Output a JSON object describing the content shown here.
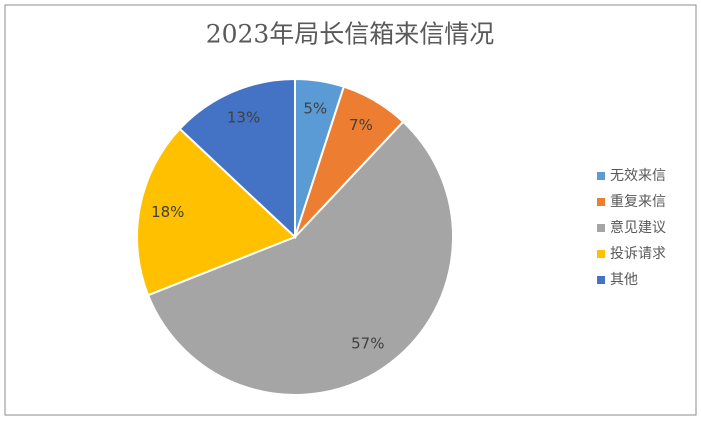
{
  "chart_data": {
    "type": "pie",
    "title": "2023年局长信箱来信情况",
    "categories": [
      "无效来信",
      "重复来信",
      "意见建议",
      "投诉请求",
      "其他"
    ],
    "values": [
      5,
      7,
      57,
      18,
      13
    ],
    "value_labels": [
      "5%",
      "7%",
      "57%",
      "18%",
      "13%"
    ],
    "colors": [
      "#5b9bd5",
      "#ed7d31",
      "#a5a5a5",
      "#ffc000",
      "#4472c4"
    ],
    "legend": "right"
  }
}
